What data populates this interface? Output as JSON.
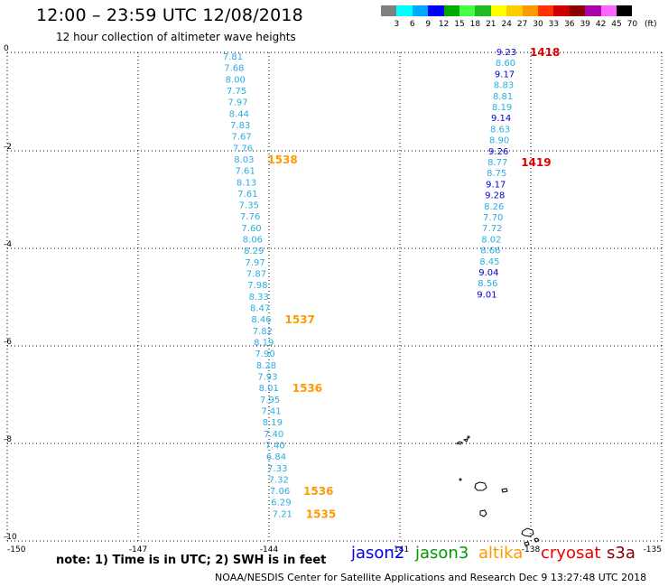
{
  "header": {
    "title": "12:00 – 23:59 UTC 12/08/2018",
    "subtitle": "12 hour collection of altimeter wave heights"
  },
  "legend": {
    "labels": [
      "3",
      "6",
      "9",
      "12",
      "15",
      "18",
      "21",
      "24",
      "27",
      "30",
      "33",
      "36",
      "39",
      "42",
      "45",
      "70"
    ],
    "unit": "(ft)",
    "colors": [
      "#808080",
      "#00ffff",
      "#00aaff",
      "#0000ff",
      "#00aa00",
      "#44ff44",
      "#22bb22",
      "#ffff00",
      "#ffcc00",
      "#ff9900",
      "#ff3300",
      "#cc0000",
      "#880000",
      "#aa00aa",
      "#ff66ff",
      "#000000"
    ]
  },
  "axes": {
    "x_ticks": [
      "-150",
      "-147",
      "-144",
      "-141",
      "-138",
      "-135"
    ],
    "y_ticks": [
      "0",
      "-2",
      "-4",
      "-6",
      "-8",
      "-10"
    ]
  },
  "tracks": [
    {
      "name": "track-1538",
      "color": "#2aaee0",
      "time_color": "#ff9900",
      "values": [
        "7.81",
        "7.68",
        "8.00",
        "7.75",
        "7.97",
        "8.44",
        "7.83",
        "7.67",
        "7.76",
        "8.03",
        "7.61",
        "8.13",
        "7.61",
        "7.35",
        "7.76",
        "7.60",
        "8.06",
        "8.29",
        "7.97",
        "7.87",
        "7.98",
        "8.33",
        "8.47",
        "8.46",
        "7.82",
        "8.19",
        "7.90",
        "8.28",
        "7.93",
        "8.01",
        "7.95",
        "7.41",
        "8.19",
        "7.40",
        "7.40",
        "6.84",
        "7.33",
        "7.32",
        "7.06",
        "6.29",
        "7.21"
      ],
      "times": [
        {
          "label": "1538",
          "row": 9
        },
        {
          "label": "1537",
          "row": 23
        },
        {
          "label": "1536",
          "row": 29
        },
        {
          "label": "1536",
          "row": 38
        },
        {
          "label": "1535",
          "row": 40
        }
      ]
    },
    {
      "name": "track-1418",
      "color": "#2aaee0",
      "time_color": "#dd0000",
      "values": [
        "9.23",
        "8.60",
        "9.17",
        "8.83",
        "8.81",
        "8.19",
        "9.14",
        "8.63",
        "8.90",
        "9.26",
        "8.77",
        "8.75",
        "9.17",
        "9.28",
        "8.26",
        "7.70",
        "7.72",
        "8.02",
        "8.66",
        "8.45",
        "9.04",
        "8.56",
        "9.01"
      ],
      "dark_rows": [
        0,
        2,
        6,
        9,
        12,
        13,
        20,
        22
      ],
      "times": [
        {
          "label": "1418",
          "row": 0
        },
        {
          "label": "1419",
          "row": 10
        }
      ]
    }
  ],
  "satellites": [
    {
      "name": "jason2",
      "color": "#0000ee"
    },
    {
      "name": "jason3",
      "color": "#009900"
    },
    {
      "name": "altika",
      "color": "#ff9900"
    },
    {
      "name": "cryosat",
      "color": "#ee0000"
    },
    {
      "name": "s3a",
      "color": "#880000"
    }
  ],
  "footer": {
    "note": "note: 1) Time is in UTC; 2) SWH is in feet",
    "credit": "NOAA/NESDIS Center for Satellite Applications and Research   Dec 9 13:27:48 UTC 2018"
  }
}
